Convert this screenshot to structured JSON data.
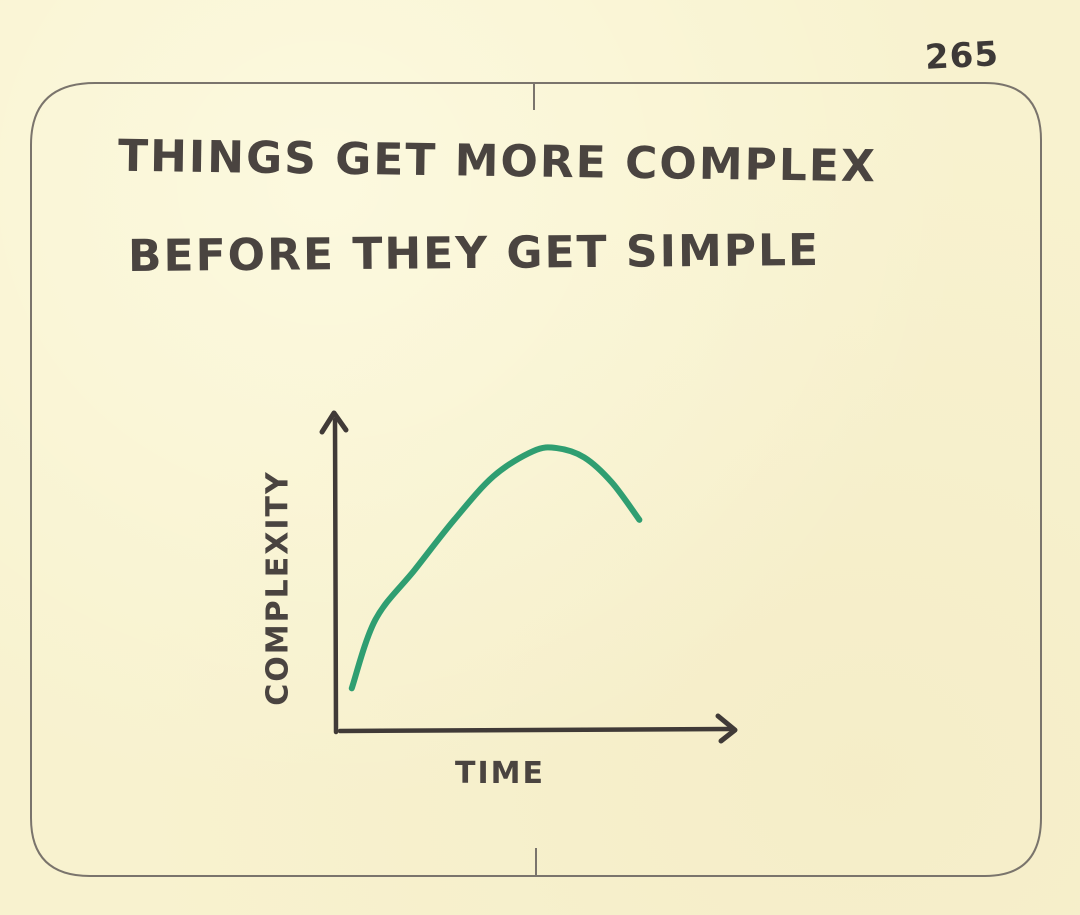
{
  "page_number": "265",
  "title": {
    "line1": "Things get more complex",
    "line2": "before they get simple"
  },
  "colors": {
    "paper": "#f8f2cf",
    "ink": "#3f3a36",
    "frame": "#7a746c",
    "curve": "#2f9e71"
  },
  "chart_data": {
    "type": "line",
    "title": "Things get more complex before they get simple",
    "xlabel": "Time",
    "ylabel": "Complexity",
    "axis_ticks": "none",
    "grid": false,
    "legend": "none",
    "xlim": [
      0,
      100
    ],
    "ylim": [
      0,
      100
    ],
    "series": [
      {
        "name": "complexity",
        "color": "#2f9e71",
        "x": [
          4,
          10,
          20,
          30,
          40,
          50,
          56,
          63,
          70,
          77
        ],
        "y": [
          14,
          36,
          52,
          68,
          82,
          90,
          91,
          88,
          80,
          68
        ]
      }
    ],
    "annotations": []
  }
}
